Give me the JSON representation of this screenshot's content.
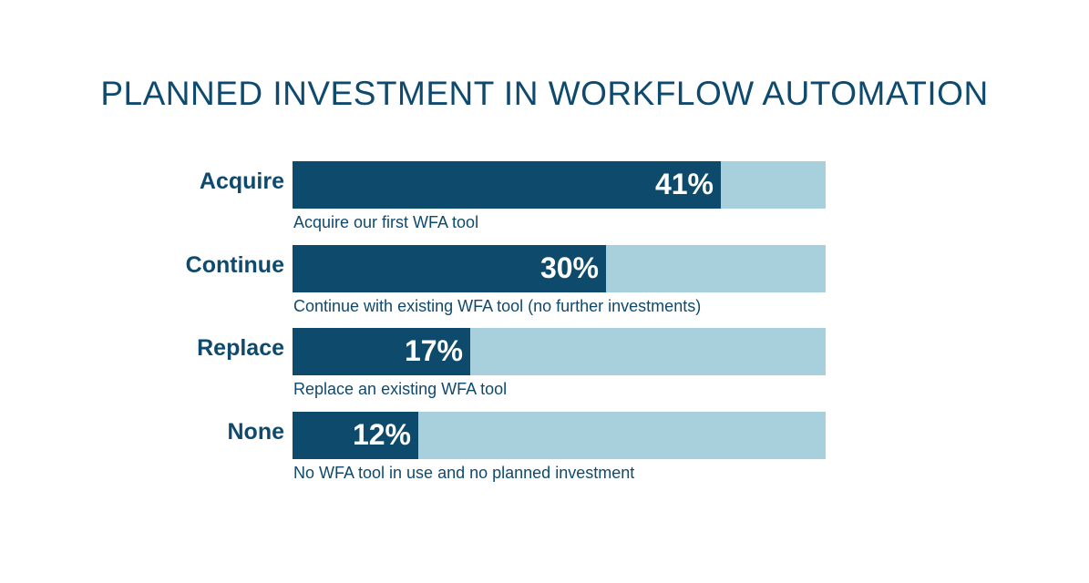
{
  "chart_data": {
    "type": "bar",
    "orientation": "horizontal",
    "title": "PLANNED INVESTMENT IN WORKFLOW AUTOMATION",
    "categories": [
      "Acquire",
      "Continue",
      "Replace",
      "None"
    ],
    "values": [
      41,
      30,
      17,
      12
    ],
    "value_labels": [
      "41%",
      "30%",
      "17%",
      "12%"
    ],
    "descriptions": [
      "Acquire our first WFA tool",
      "Continue with existing WFA tool (no further investments)",
      "Replace an existing WFA tool",
      "No WFA tool in use and no planned investment"
    ],
    "xlim": [
      0,
      51
    ],
    "grid": false,
    "colors": {
      "bar": "#0d4a6b",
      "track": "#a8d0dc",
      "text": "#0e4a6e",
      "value_text": "#ffffff"
    }
  }
}
